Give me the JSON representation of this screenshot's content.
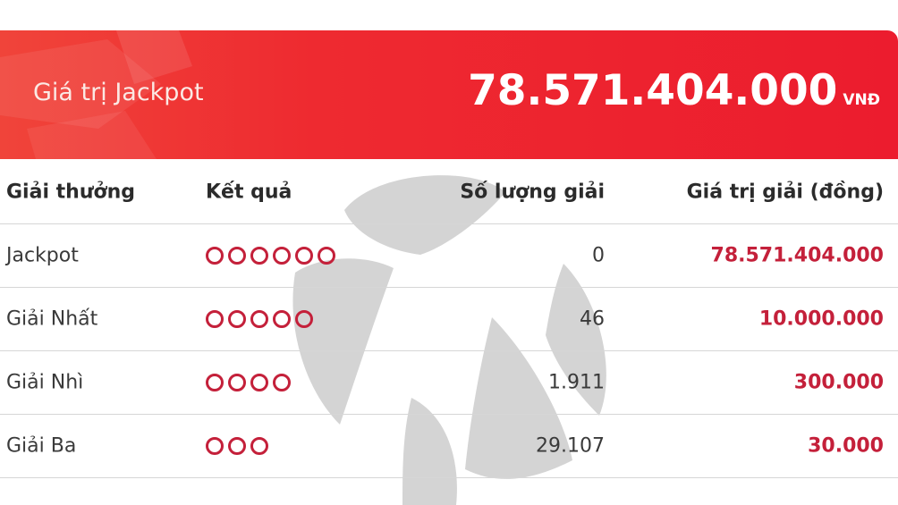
{
  "banner": {
    "title": "Giá trị Jackpot",
    "amount": "78.571.404.000",
    "unit": "VNĐ"
  },
  "colors": {
    "banner": "#ec1c2e",
    "value": "#c4203a",
    "watermark": "#d4d4d4"
  },
  "table": {
    "headers": [
      "Giải thưởng",
      "Kết quả",
      "Số lượng giải",
      "Giá trị giải (đồng)"
    ],
    "rows": [
      {
        "prize": "Jackpot",
        "matches": 6,
        "count": "0",
        "value": "78.571.404.000"
      },
      {
        "prize": "Giải Nhất",
        "matches": 5,
        "count": "46",
        "value": "10.000.000"
      },
      {
        "prize": "Giải Nhì",
        "matches": 4,
        "count": "1.911",
        "value": "300.000"
      },
      {
        "prize": "Giải Ba",
        "matches": 3,
        "count": "29.107",
        "value": "30.000"
      }
    ]
  }
}
